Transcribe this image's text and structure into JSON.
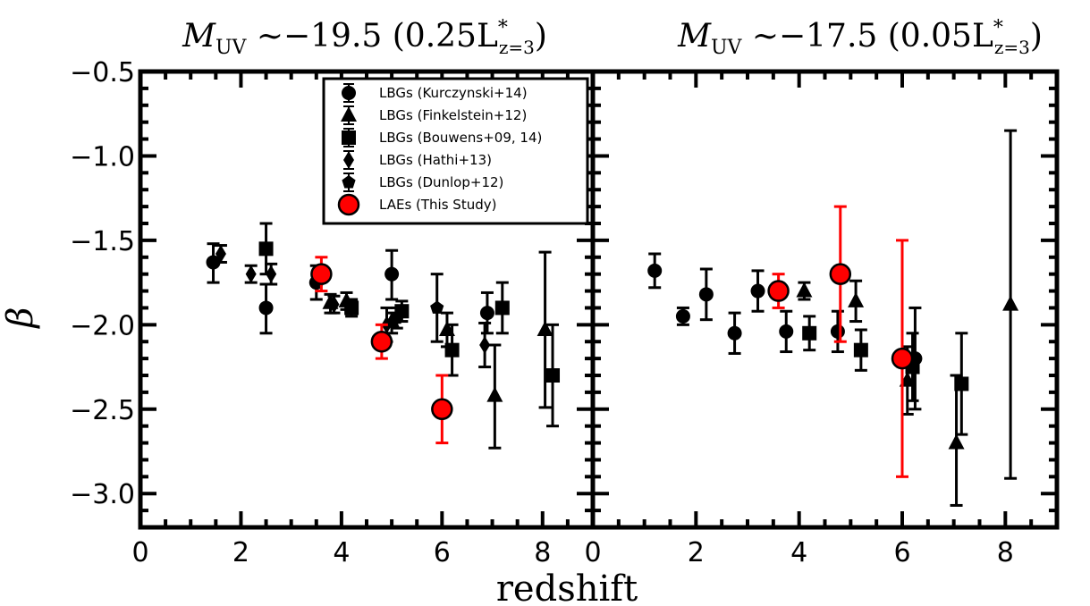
{
  "figure": {
    "xlabel": "redshift",
    "ylabel": "β"
  },
  "chart_data": [
    {
      "type": "scatter",
      "title_parts": {
        "pre": "M",
        "sub1": "UV",
        "mid": " ∼−19.5 (0.25L",
        "sup": "*",
        "sub2": "z=3",
        "post": ")"
      },
      "xlim": [
        0,
        9
      ],
      "ylim": [
        -3.2,
        -0.5
      ],
      "xticks": [
        0,
        2,
        4,
        6,
        8
      ],
      "yticks": [
        -0.5,
        -1.0,
        -1.5,
        -2.0,
        -2.5,
        -3.0
      ],
      "ytick_labels": [
        "−0.5",
        "−1.0",
        "−1.5",
        "−2.0",
        "−2.5",
        "−3.0"
      ],
      "legend": {
        "placement": "upper-center",
        "entries": [
          {
            "label": "LBGs (Kurczynski+14)",
            "marker": "circle"
          },
          {
            "label": "LBGs (Finkelstein+12)",
            "marker": "triangle"
          },
          {
            "label": "LBGs (Bouwens+09, 14)",
            "marker": "square"
          },
          {
            "label": "LBGs (Hathi+13)",
            "marker": "diamond"
          },
          {
            "label": "LBGs (Dunlop+12)",
            "marker": "pentagon"
          },
          {
            "label": "LAEs (This Study)",
            "marker": "big-circle"
          }
        ]
      },
      "series": [
        {
          "marker": "circle",
          "color": "#000000",
          "points": [
            {
              "x": 1.45,
              "y": -1.63,
              "lo": -1.75,
              "hi": -1.52
            },
            {
              "x": 2.5,
              "y": -1.9,
              "lo": -2.05,
              "hi": -1.76
            },
            {
              "x": 3.5,
              "y": -1.75,
              "lo": -1.85,
              "hi": -1.65
            },
            {
              "x": 5.0,
              "y": -1.7,
              "lo": -1.85,
              "hi": -1.56
            },
            {
              "x": 6.9,
              "y": -1.93,
              "lo": -2.05,
              "hi": -1.81
            }
          ]
        },
        {
          "marker": "triangle",
          "color": "#000000",
          "points": [
            {
              "x": 3.78,
              "y": -1.87,
              "lo": -1.93,
              "hi": -1.82
            },
            {
              "x": 4.1,
              "y": -1.86,
              "lo": -1.91,
              "hi": -1.81
            },
            {
              "x": 5.0,
              "y": -1.98,
              "lo": -2.05,
              "hi": -1.93
            },
            {
              "x": 6.1,
              "y": -2.03,
              "lo": -2.13,
              "hi": -1.93
            },
            {
              "x": 7.05,
              "y": -2.42,
              "lo": -2.73,
              "hi": -2.12
            },
            {
              "x": 8.05,
              "y": -2.03,
              "lo": -2.49,
              "hi": -1.57
            }
          ]
        },
        {
          "marker": "square",
          "color": "#000000",
          "points": [
            {
              "x": 2.5,
              "y": -1.55,
              "lo": -1.7,
              "hi": -1.4
            },
            {
              "x": 4.2,
              "y": -1.9,
              "lo": -1.95,
              "hi": -1.85
            },
            {
              "x": 5.2,
              "y": -1.92,
              "lo": -1.98,
              "hi": -1.86
            },
            {
              "x": 6.2,
              "y": -2.15,
              "lo": -2.3,
              "hi": -2.0
            },
            {
              "x": 7.2,
              "y": -1.9,
              "lo": -2.05,
              "hi": -1.75
            },
            {
              "x": 8.2,
              "y": -2.3,
              "lo": -2.6,
              "hi": -2.0
            }
          ]
        },
        {
          "marker": "diamond",
          "color": "#000000",
          "points": [
            {
              "x": 1.6,
              "y": -1.58,
              "lo": -1.63,
              "hi": -1.53
            },
            {
              "x": 2.2,
              "y": -1.7,
              "lo": -1.75,
              "hi": -1.65
            },
            {
              "x": 2.6,
              "y": -1.7,
              "lo": -1.76,
              "hi": -1.64
            },
            {
              "x": 3.85,
              "y": -1.88,
              "lo": -1.93,
              "hi": -1.83
            },
            {
              "x": 4.9,
              "y": -2.0,
              "lo": -2.1,
              "hi": -1.9
            },
            {
              "x": 6.85,
              "y": -2.12,
              "lo": -2.25,
              "hi": -1.99
            }
          ]
        },
        {
          "marker": "pentagon",
          "color": "#000000",
          "points": [
            {
              "x": 5.1,
              "y": -1.96,
              "lo": -2.02,
              "hi": -1.9
            },
            {
              "x": 5.9,
              "y": -1.9,
              "lo": -2.1,
              "hi": -1.7
            }
          ]
        },
        {
          "marker": "big-circle",
          "color": "#ff0000",
          "points": [
            {
              "x": 3.6,
              "y": -1.7,
              "lo": -1.8,
              "hi": -1.6
            },
            {
              "x": 4.8,
              "y": -2.1,
              "lo": -2.2,
              "hi": -2.0
            },
            {
              "x": 6.0,
              "y": -2.5,
              "lo": -2.7,
              "hi": -2.3
            }
          ]
        }
      ]
    },
    {
      "type": "scatter",
      "title_parts": {
        "pre": "M",
        "sub1": "UV",
        "mid": " ∼−17.5 (0.05L",
        "sup": "*",
        "sub2": "z=3",
        "post": ")"
      },
      "xlim": [
        0,
        9
      ],
      "ylim": [
        -3.2,
        -0.5
      ],
      "xticks": [
        0,
        2,
        4,
        6,
        8
      ],
      "series": [
        {
          "marker": "circle",
          "color": "#000000",
          "points": [
            {
              "x": 1.2,
              "y": -1.68,
              "lo": -1.78,
              "hi": -1.58
            },
            {
              "x": 1.75,
              "y": -1.95,
              "lo": -2.0,
              "hi": -1.9
            },
            {
              "x": 2.2,
              "y": -1.82,
              "lo": -1.97,
              "hi": -1.67
            },
            {
              "x": 2.75,
              "y": -2.05,
              "lo": -2.17,
              "hi": -1.93
            },
            {
              "x": 3.2,
              "y": -1.8,
              "lo": -1.92,
              "hi": -1.68
            },
            {
              "x": 3.75,
              "y": -2.04,
              "lo": -2.16,
              "hi": -1.92
            },
            {
              "x": 4.75,
              "y": -2.04,
              "lo": -2.16,
              "hi": -1.92
            },
            {
              "x": 6.25,
              "y": -2.2,
              "lo": -2.5,
              "hi": -1.9
            }
          ]
        },
        {
          "marker": "triangle",
          "color": "#000000",
          "points": [
            {
              "x": 4.1,
              "y": -1.8,
              "lo": -1.85,
              "hi": -1.75
            },
            {
              "x": 5.1,
              "y": -1.86,
              "lo": -1.98,
              "hi": -1.74
            },
            {
              "x": 6.1,
              "y": -2.33,
              "lo": -2.53,
              "hi": -2.13
            },
            {
              "x": 7.05,
              "y": -2.7,
              "lo": -3.07,
              "hi": -2.3
            },
            {
              "x": 8.1,
              "y": -1.88,
              "lo": -2.91,
              "hi": -0.85
            }
          ]
        },
        {
          "marker": "square",
          "color": "#000000",
          "points": [
            {
              "x": 4.2,
              "y": -2.05,
              "lo": -2.15,
              "hi": -1.95
            },
            {
              "x": 5.2,
              "y": -2.15,
              "lo": -2.27,
              "hi": -2.03
            },
            {
              "x": 6.2,
              "y": -2.25,
              "lo": -2.45,
              "hi": -2.05
            },
            {
              "x": 7.15,
              "y": -2.35,
              "lo": -2.65,
              "hi": -2.05
            }
          ]
        },
        {
          "marker": "big-circle",
          "color": "#ff0000",
          "points": [
            {
              "x": 3.6,
              "y": -1.8,
              "lo": -1.9,
              "hi": -1.7
            },
            {
              "x": 4.8,
              "y": -1.7,
              "lo": -2.1,
              "hi": -1.3
            },
            {
              "x": 6.0,
              "y": -2.2,
              "lo": -2.9,
              "hi": -1.5
            }
          ]
        }
      ]
    }
  ]
}
